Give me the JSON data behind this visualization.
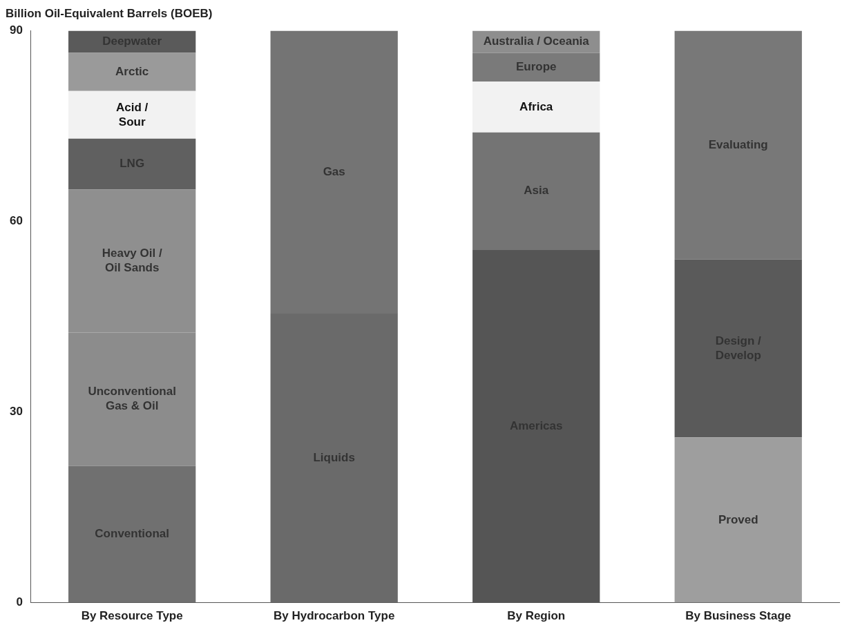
{
  "chart_data": {
    "type": "bar",
    "stacked": true,
    "ylabel": "Billion Oil-Equivalent Barrels (BOEB)",
    "categories": [
      "By Resource Type",
      "By Hydrocarbon Type",
      "By Region",
      "By Business Stage"
    ],
    "ylim": [
      0,
      90
    ],
    "yticks": [
      0,
      30,
      60,
      90
    ],
    "grid": false,
    "legend": false,
    "series": [
      {
        "name": "Conventional",
        "color": "#707070",
        "values": [
          21.5,
          null,
          null,
          null
        ]
      },
      {
        "name": "Unconventional\nGas & Oil",
        "color": "#8c8c8c",
        "values": [
          21,
          null,
          null,
          null
        ]
      },
      {
        "name": "Heavy Oil /\nOil Sands",
        "color": "#8f8f8f",
        "values": [
          22.5,
          null,
          null,
          null
        ]
      },
      {
        "name": "LNG",
        "color": "#606060",
        "values": [
          8,
          null,
          null,
          null
        ]
      },
      {
        "name": "Acid /\nSour",
        "color": "#f2f2f2",
        "values": [
          7.5,
          null,
          null,
          null
        ]
      },
      {
        "name": "Arctic",
        "color": "#9a9a9a",
        "values": [
          6,
          null,
          null,
          null
        ]
      },
      {
        "name": "Deepwater",
        "color": "#5a5a5a",
        "values": [
          3.5,
          null,
          null,
          null
        ]
      },
      {
        "name": "Liquids",
        "color": "#6a6a6a",
        "values": [
          null,
          45.5,
          null,
          null
        ]
      },
      {
        "name": "Gas",
        "color": "#747474",
        "values": [
          null,
          44.5,
          null,
          null
        ]
      },
      {
        "name": "Americas",
        "color": "#555555",
        "values": [
          null,
          null,
          55.5,
          null
        ]
      },
      {
        "name": "Asia",
        "color": "#747474",
        "values": [
          null,
          null,
          18.5,
          null
        ]
      },
      {
        "name": "Africa",
        "color": "#f2f2f2",
        "values": [
          null,
          null,
          8,
          null
        ]
      },
      {
        "name": "Europe",
        "color": "#7a7a7a",
        "values": [
          null,
          null,
          4.5,
          null
        ]
      },
      {
        "name": "Australia / Oceania",
        "color": "#8e8e8e",
        "values": [
          null,
          null,
          3.5,
          null
        ]
      },
      {
        "name": "Proved",
        "color": "#9e9e9e",
        "values": [
          null,
          null,
          null,
          26
        ]
      },
      {
        "name": "Design /\nDevelop",
        "color": "#5a5a5a",
        "values": [
          null,
          null,
          null,
          28
        ]
      },
      {
        "name": "Evaluating",
        "color": "#787878",
        "values": [
          null,
          null,
          null,
          36
        ]
      }
    ]
  }
}
